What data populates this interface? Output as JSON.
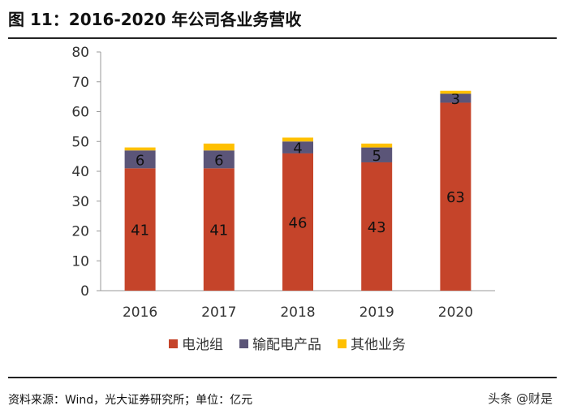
{
  "title": "图 11：2016-2020 年公司各业务营收",
  "footer": "资料来源：Wind，光大证券研究所；单位：亿元",
  "watermark": "头条 @财是",
  "chart_data": {
    "type": "bar",
    "stacked": true,
    "categories": [
      "2016",
      "2017",
      "2018",
      "2019",
      "2020"
    ],
    "series": [
      {
        "name": "电池组",
        "values": [
          41,
          41,
          46,
          43,
          63
        ],
        "color": "#c5442a",
        "labels": [
          "41",
          "41",
          "46",
          "43",
          "63"
        ]
      },
      {
        "name": "输配电产品",
        "values": [
          6,
          6,
          4,
          5,
          3
        ],
        "color": "#5b5578",
        "labels": [
          "6",
          "6",
          "4",
          "5",
          "3"
        ]
      },
      {
        "name": "其他业务",
        "values": [
          1,
          2.3,
          1.3,
          1.3,
          1
        ],
        "color": "#ffc000",
        "labels": []
      }
    ],
    "ylim": [
      0,
      80
    ],
    "yticks": [
      0,
      10,
      20,
      30,
      40,
      50,
      60,
      70,
      80
    ],
    "grid": false,
    "legend": "bottom"
  }
}
